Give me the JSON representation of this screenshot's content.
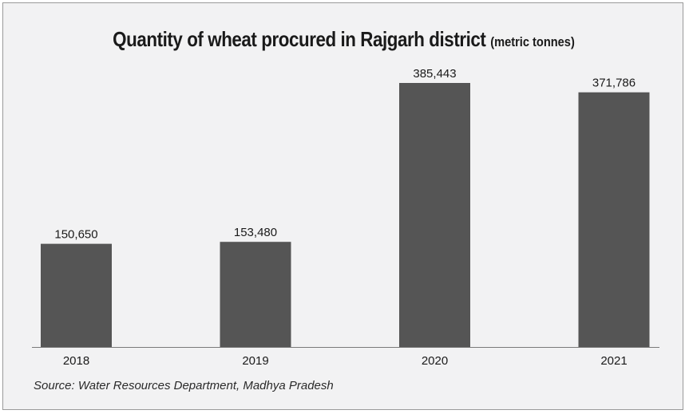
{
  "chart_data": {
    "type": "bar",
    "title": "Quantity of wheat procured in Rajgarh district",
    "unit": "(metric tonnes)",
    "categories": [
      "2018",
      "2019",
      "2020",
      "2021"
    ],
    "values": [
      150650,
      153480,
      385443,
      371786
    ],
    "value_labels": [
      "150,650",
      "153,480",
      "385,443",
      "371,786"
    ],
    "bar_color": "#555555",
    "ylim": [
      0,
      385443
    ],
    "grid": false,
    "legend": "none"
  },
  "source": "Source: Water Resources Department, Madhya Pradesh"
}
